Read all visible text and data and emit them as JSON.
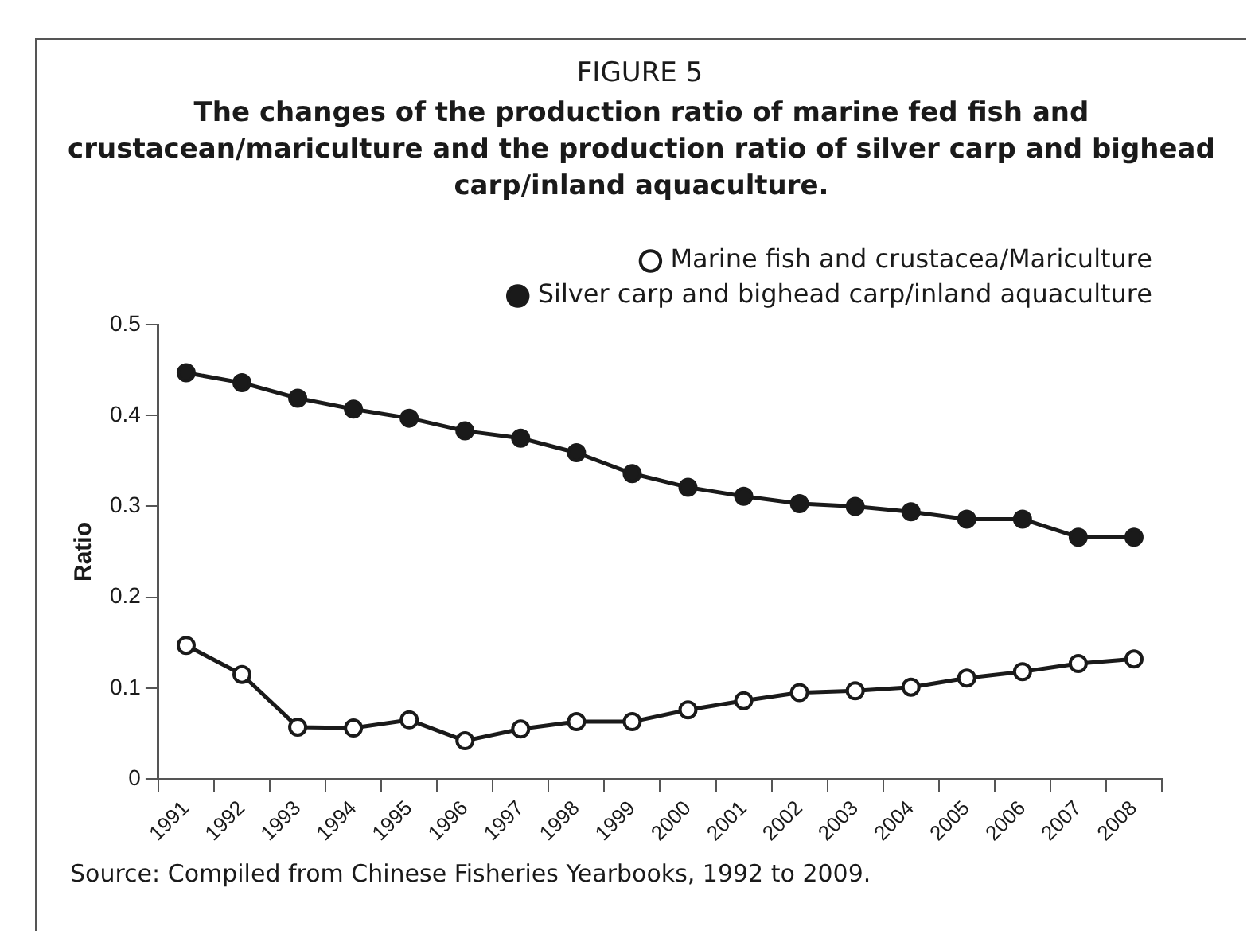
{
  "chart_data": {
    "type": "line",
    "title": "FIGURE 5",
    "subtitle": "The changes of the production ratio of marine fed fish and crustacean/mariculture and the production ratio of silver carp and bighead carp/inland aquaculture.",
    "ylabel": "Ratio",
    "categories": [
      "1991",
      "1992",
      "1993",
      "1994",
      "1995",
      "1996",
      "1997",
      "1998",
      "1999",
      "2000",
      "2001",
      "2002",
      "2003",
      "2004",
      "2005",
      "2006",
      "2007",
      "2008"
    ],
    "series": [
      {
        "name": "Marine fish and crustacea/Mariculture",
        "color": "#1a1a1a",
        "values": [
          0.147,
          0.115,
          0.057,
          0.056,
          0.065,
          0.042,
          0.055,
          0.063,
          0.063,
          0.076,
          0.086,
          0.095,
          0.097,
          0.101,
          0.111,
          0.118,
          0.127,
          0.132
        ]
      },
      {
        "name": "Silver carp and bighead carp/inland aquaculture",
        "color": "#1a1a1a",
        "values": [
          0.447,
          0.436,
          0.419,
          0.407,
          0.397,
          0.383,
          0.375,
          0.359,
          0.336,
          0.321,
          0.311,
          0.303,
          0.3,
          0.294,
          0.286,
          0.286,
          0.266,
          0.266
        ]
      }
    ],
    "ylim": [
      0,
      0.5
    ],
    "yticks": [
      0,
      0.1,
      0.2,
      0.3,
      0.4,
      0.5
    ],
    "legend": "top right",
    "marker": "circle",
    "line_style": "solid",
    "grid": false,
    "annotations": [
      "Source: Compiled from Chinese Fisheries Yearbooks, 1992 to 2009."
    ]
  }
}
